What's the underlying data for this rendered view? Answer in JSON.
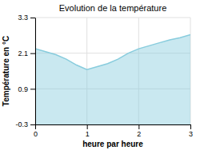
{
  "chart_data": {
    "type": "area",
    "title": "Evolution de la température",
    "x_label": "heure par heure",
    "y_label": "Température en °C",
    "x": [
      0,
      0.2,
      0.4,
      0.6,
      0.8,
      1.0,
      1.2,
      1.4,
      1.6,
      1.8,
      2.0,
      2.2,
      2.4,
      2.6,
      2.8,
      3.0
    ],
    "values": [
      2.25,
      2.15,
      2.05,
      1.9,
      1.7,
      1.55,
      1.65,
      1.75,
      1.9,
      2.1,
      2.25,
      2.35,
      2.45,
      2.55,
      2.62,
      2.72
    ],
    "color": "#88ccdd",
    "xlim": [
      0,
      3
    ],
    "ylim": [
      -0.3,
      3.3
    ],
    "xticks": [
      0,
      1,
      2,
      3
    ],
    "yticks": [
      -0.3,
      0.9,
      2.1,
      3.3
    ],
    "grid": true
  }
}
